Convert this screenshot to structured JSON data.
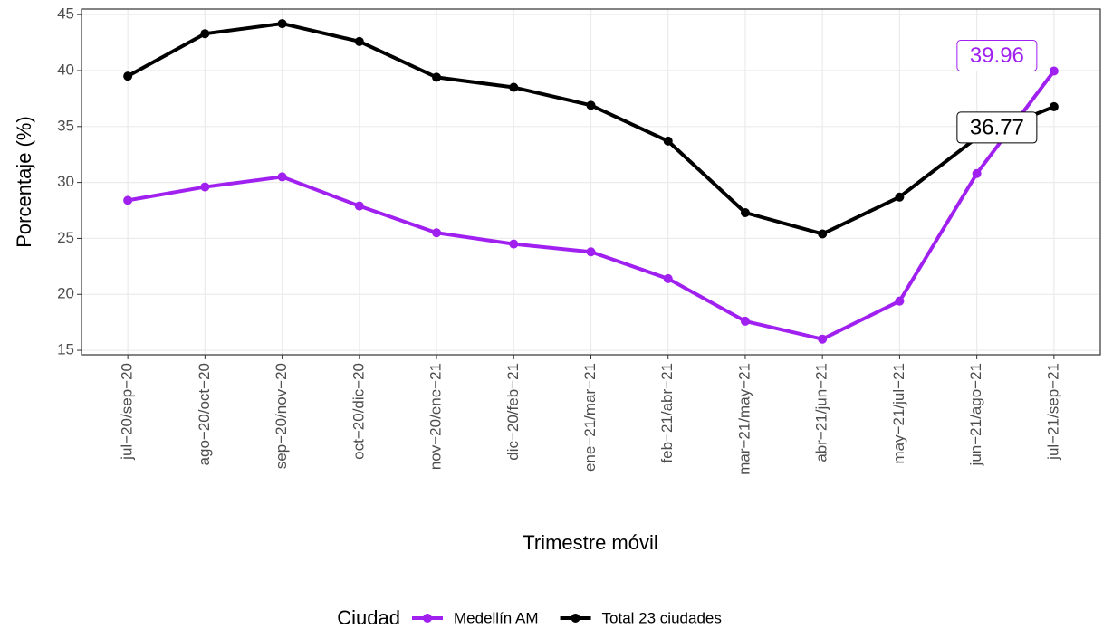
{
  "chart_data": {
    "type": "line",
    "x_label": "Trimestre móvil",
    "y_label": "Porcentaje (%)",
    "legend_title": "Ciudad",
    "legend_position": "bottom",
    "grid": true,
    "categories": [
      "jul−20/sep−20",
      "ago−20/oct−20",
      "sep−20/nov−20",
      "oct−20/dic−20",
      "nov−20/ene−21",
      "dic−20/feb−21",
      "ene−21/mar−21",
      "feb−21/abr−21",
      "mar−21/may−21",
      "abr−21/jun−21",
      "may−21/jul−21",
      "jun−21/ago−21",
      "jul−21/sep−21"
    ],
    "series": [
      {
        "name": "Medellín AM",
        "color": "#a020f0",
        "values": [
          28.4,
          29.6,
          30.5,
          27.9,
          25.5,
          24.5,
          23.8,
          21.4,
          17.6,
          16.0,
          19.4,
          30.8,
          39.96
        ]
      },
      {
        "name": "Total 23 ciudades",
        "color": "#000000",
        "values": [
          39.5,
          43.3,
          44.2,
          42.6,
          39.4,
          38.5,
          36.9,
          33.7,
          27.3,
          25.4,
          28.7,
          34.0,
          36.77
        ]
      }
    ],
    "ylim": [
      14.6,
      45.5
    ],
    "yticks": [
      15,
      20,
      25,
      30,
      35,
      40,
      45
    ]
  }
}
